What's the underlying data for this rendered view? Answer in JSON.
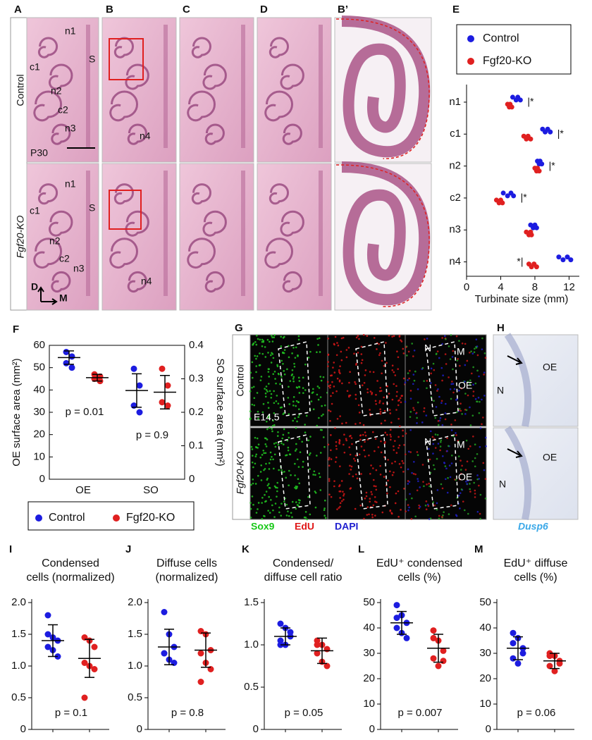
{
  "micrographs": {
    "panels": [
      "A",
      "B",
      "C",
      "D",
      "B’"
    ],
    "rows": [
      "Control",
      "Fgf20-KO"
    ],
    "upper_labels": [
      "n1",
      "S",
      "c1",
      "n2",
      "c2",
      "n3",
      "P30",
      "n4"
    ],
    "lower_labels": [
      "n1",
      "S",
      "c1",
      "n2",
      "c2",
      "n3",
      "n4",
      "D",
      "M"
    ]
  },
  "fluorescence": {
    "panel": "G",
    "rows": [
      "Control",
      "Fgf20-KO"
    ],
    "stage": "E14.5",
    "labels": [
      "N",
      "M",
      "OE",
      "N",
      "M",
      "OE"
    ],
    "channels": [
      "Sox9",
      "EdU",
      "DAPI"
    ]
  },
  "in_situ": {
    "panel": "H",
    "labels": [
      "OE",
      "N",
      "OE",
      "N"
    ],
    "probe": "Dusp6"
  },
  "chart_data": [
    {
      "panel": "E",
      "type": "hdot",
      "categories": [
        "n1",
        "c1",
        "n2",
        "c2",
        "n3",
        "n4"
      ],
      "series": [
        {
          "name": "Control",
          "color": "#1c1ce0",
          "values": [
            [
              5.4,
              5.8,
              6.0,
              6.3
            ],
            [
              8.9,
              9.2,
              9.5,
              9.8
            ],
            [
              8.3,
              8.5,
              8.6,
              8.8
            ],
            [
              4.3,
              4.8,
              5.2,
              5.5
            ],
            [
              7.5,
              7.8,
              8.0,
              8.2
            ],
            [
              10.8,
              11.3,
              11.8,
              12.2
            ]
          ]
        },
        {
          "name": "Fgf20-KO",
          "color": "#e02020",
          "values": [
            [
              4.8,
              5.0,
              5.1,
              5.3
            ],
            [
              6.7,
              7.0,
              7.2,
              7.5
            ],
            [
              8.0,
              8.2,
              8.3,
              8.5
            ],
            [
              3.5,
              3.8,
              4.0,
              4.2
            ],
            [
              7.0,
              7.3,
              7.5,
              7.6
            ],
            [
              7.3,
              7.6,
              7.9,
              8.2
            ]
          ]
        }
      ],
      "significance": [
        "|*",
        "|*",
        "|*",
        "|*",
        "*|"
      ],
      "significance_rows": [
        0,
        1,
        2,
        3,
        5
      ],
      "xlim": [
        0,
        13.2
      ],
      "xticks": [
        0,
        4,
        8,
        12
      ],
      "xlabel": "Turbinate size (mm)",
      "legend": "top"
    },
    {
      "panel": "F",
      "type": "vdot2",
      "categories": [
        "OE",
        "SO"
      ],
      "category_axes": [
        "y",
        "y2"
      ],
      "series": [
        {
          "name": "Control",
          "color": "#1c1ce0",
          "values": [
            [
              57,
              55,
              52,
              50
            ],
            [
              0.33,
              0.28,
              0.22,
              0.2
            ]
          ],
          "mean": [
            54.5,
            0.265
          ],
          "sd": [
            3,
            0.05
          ]
        },
        {
          "name": "Fgf20-KO",
          "color": "#e02020",
          "values": [
            [
              47,
              46,
              45,
              44
            ],
            [
              0.33,
              0.28,
              0.23,
              0.22
            ]
          ],
          "mean": [
            45.5,
            0.26
          ],
          "sd": [
            1.5,
            0.05
          ]
        }
      ],
      "p_values": [
        "p = 0.01",
        "p = 0.9"
      ],
      "ylim": [
        0,
        60
      ],
      "yticks": [
        0,
        10,
        20,
        30,
        40,
        50,
        60
      ],
      "ylabel": "OE surface area (mm²)",
      "y2lim": [
        0,
        0.4
      ],
      "y2ticks": [
        0,
        0.1,
        0.2,
        0.3,
        0.4
      ],
      "y2label": "SO surface area (mm²)",
      "legend": "bottom"
    },
    {
      "panel": "I",
      "type": "vdot",
      "title": [
        "Condensed",
        "cells (normalized)"
      ],
      "series": [
        {
          "color": "#1c1ce0",
          "values": [
            1.5,
            1.45,
            1.4,
            1.3,
            1.25,
            1.15,
            1.8
          ],
          "mean": 1.4,
          "sd": 0.25
        },
        {
          "color": "#e02020",
          "values": [
            1.45,
            1.4,
            1.3,
            1.05,
            1.0,
            0.95,
            0.5
          ],
          "mean": 1.12,
          "sd": 0.3
        }
      ],
      "p": "p = 0.1",
      "ylim": [
        0,
        2
      ],
      "yticks": [
        0,
        {
          "value": 0.5,
          "label": "0.5"
        },
        {
          "value": 1,
          "label": "1.0"
        },
        {
          "value": 1.5,
          "label": "1.5"
        },
        {
          "value": 2,
          "label": "2.0"
        }
      ]
    },
    {
      "panel": "J",
      "type": "vdot",
      "title": [
        "Diffuse cells",
        "(normalized)"
      ],
      "series": [
        {
          "color": "#1c1ce0",
          "values": [
            1.85,
            1.5,
            1.3,
            1.2,
            1.1,
            1.05,
            1.2
          ],
          "mean": 1.3,
          "sd": 0.28
        },
        {
          "color": "#e02020",
          "values": [
            1.55,
            1.5,
            1.25,
            1.2,
            1.05,
            0.95,
            0.75
          ],
          "mean": 1.25,
          "sd": 0.27
        }
      ],
      "p": "p = 0.8",
      "ylim": [
        0,
        2
      ],
      "yticks": [
        0,
        {
          "value": 0.5,
          "label": "0.5"
        },
        {
          "value": 1,
          "label": "1.0"
        },
        {
          "value": 1.5,
          "label": "1.5"
        },
        {
          "value": 2,
          "label": "2.0"
        }
      ]
    },
    {
      "panel": "K",
      "type": "vdot",
      "title": [
        "Condensed/",
        "diffuse cell ratio"
      ],
      "series": [
        {
          "color": "#1c1ce0",
          "values": [
            1.25,
            1.2,
            1.1,
            1.05,
            1.0,
            1.15,
            1.0
          ],
          "mean": 1.1,
          "sd": 0.1
        },
        {
          "color": "#e02020",
          "values": [
            1.05,
            1.0,
            0.95,
            0.9,
            0.8,
            0.75,
            1.0
          ],
          "mean": 0.93,
          "sd": 0.15
        }
      ],
      "p": "p = 0.05",
      "ylim": [
        0,
        1.5
      ],
      "yticks": [
        0,
        {
          "value": 0.5,
          "label": "0.5"
        },
        {
          "value": 1,
          "label": "1.0"
        },
        {
          "value": 1.5,
          "label": "1.5"
        }
      ]
    },
    {
      "panel": "L",
      "type": "vdot",
      "title": [
        "EdU⁺ condensed",
        "cells (%)"
      ],
      "series": [
        {
          "color": "#1c1ce0",
          "values": [
            49,
            45,
            42,
            40,
            38,
            36,
            44
          ],
          "mean": 42,
          "sd": 4.5
        },
        {
          "color": "#e02020",
          "values": [
            39,
            35,
            31,
            28,
            25,
            27,
            36
          ],
          "mean": 32,
          "sd": 5.5
        }
      ],
      "p": "p = 0.007",
      "ylim": [
        0,
        50
      ],
      "yticks": [
        0,
        10,
        20,
        30,
        40,
        50
      ]
    },
    {
      "panel": "M",
      "type": "vdot",
      "title": [
        "EdU⁺ diffuse",
        "cells (%)"
      ],
      "series": [
        {
          "color": "#1c1ce0",
          "values": [
            38,
            36,
            32,
            28,
            26,
            30,
            34
          ],
          "mean": 32,
          "sd": 4.5
        },
        {
          "color": "#e02020",
          "values": [
            30,
            29,
            27,
            25,
            23,
            26,
            29
          ],
          "mean": 27,
          "sd": 3
        }
      ],
      "p": "p = 0.06",
      "ylim": [
        0,
        50
      ],
      "yticks": [
        0,
        10,
        20,
        30,
        40,
        50
      ]
    }
  ]
}
